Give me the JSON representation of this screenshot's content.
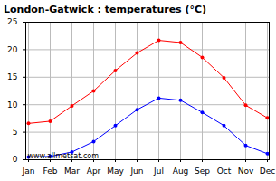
{
  "chart_data": {
    "type": "line",
    "title": "London-Gatwick : temperatures (°C)",
    "categories": [
      "Jan",
      "Feb",
      "Mar",
      "Apr",
      "May",
      "Jun",
      "Jul",
      "Aug",
      "Sep",
      "Oct",
      "Nov",
      "Dec"
    ],
    "series": [
      {
        "color": "#ff0000",
        "marker": "circle",
        "values": [
          6.6,
          7.0,
          9.8,
          12.5,
          16.2,
          19.4,
          21.7,
          21.3,
          18.6,
          14.9,
          9.9,
          7.6
        ]
      },
      {
        "color": "#0000ff",
        "marker": "circle",
        "values": [
          0.5,
          0.6,
          1.4,
          3.3,
          6.2,
          9.1,
          11.2,
          10.8,
          8.6,
          6.2,
          2.6,
          1.1
        ]
      }
    ],
    "ylim": [
      0,
      25
    ],
    "yticks": [
      0,
      5,
      10,
      15,
      20,
      25
    ],
    "grid": true,
    "annotations": [
      "www.allmetsat.com"
    ]
  }
}
